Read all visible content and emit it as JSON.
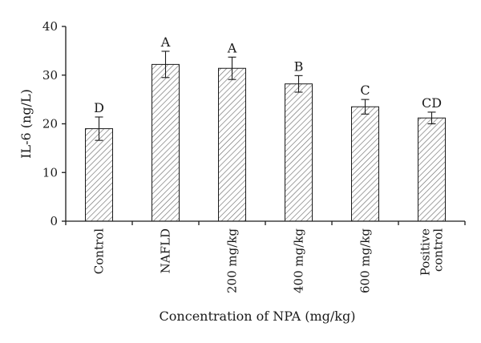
{
  "chart_data": {
    "type": "bar",
    "title": "",
    "xlabel": "Concentration of NPA (mg/kg)",
    "ylabel": "IL-6 (ng/L)",
    "ylim": [
      0,
      40
    ],
    "yticks": [
      0,
      10,
      20,
      30,
      40
    ],
    "grid": false,
    "legend": "none",
    "bar_fill": "diagonal hatch",
    "categories": [
      [
        "Control"
      ],
      [
        "NAFLD"
      ],
      [
        "200 mg/kg"
      ],
      [
        "400 mg/kg"
      ],
      [
        "600 mg/kg"
      ],
      [
        "Positive",
        "control"
      ]
    ],
    "values": [
      19,
      32.2,
      31.4,
      28.2,
      23.5,
      21.2
    ],
    "errors": [
      2.4,
      2.7,
      2.3,
      1.7,
      1.5,
      1.2
    ],
    "significance_labels": [
      "D",
      "A",
      "A",
      "B",
      "C",
      "CD"
    ],
    "colors": {
      "axis": "#1a1a1a",
      "bar_stroke": "#1a1a1a",
      "hatch": "#6e6e6e"
    }
  }
}
